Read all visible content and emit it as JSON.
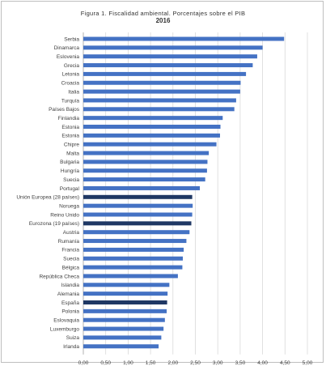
{
  "chart_data": {
    "type": "bar",
    "orientation": "horizontal",
    "title": "Figura 1. Fiscalidad ambiental. Porcentajes sobre el PIB",
    "subtitle": "2016",
    "categories": [
      "Serbia",
      "Dinamarca",
      "Eslovenia",
      "Grecia",
      "Letonia",
      "Croacia",
      "Italia",
      "Turquía",
      "Países Bajos",
      "Finlandia",
      "Estonia",
      "Estonia",
      "Chipre",
      "Malta",
      "Bulgaria",
      "Hungría",
      "Suecia",
      "Portugal",
      "Unión Europea (28 países)",
      "Noruega",
      "Reino Unido",
      "Eurozona (19 países)",
      "Austria",
      "Rumanía",
      "Francia",
      "Suecia",
      "Bélgica",
      "República Checa",
      "Islandia",
      "Alemania",
      "España",
      "Polonia",
      "Eslovaquia",
      "Luxemburgo",
      "Suiza",
      "Irlanda"
    ],
    "values": [
      4.48,
      4.0,
      3.88,
      3.78,
      3.63,
      3.51,
      3.5,
      3.41,
      3.37,
      3.11,
      3.06,
      3.05,
      2.97,
      2.8,
      2.77,
      2.76,
      2.72,
      2.6,
      2.43,
      2.44,
      2.43,
      2.41,
      2.37,
      2.3,
      2.24,
      2.22,
      2.21,
      2.11,
      1.92,
      1.88,
      1.87,
      1.86,
      1.82,
      1.79,
      1.74,
      1.68
    ],
    "highlighted": [
      "Unión Europea (28 países)",
      "Eurozona (19 países)",
      "España"
    ],
    "x_ticks": [
      "0,00",
      "0,50",
      "1,00",
      "1,50",
      "2,00",
      "2,50",
      "3,00",
      "3,50",
      "4,00",
      "4,50",
      "5,00"
    ],
    "xlim": [
      0,
      5
    ],
    "grid": "vertical",
    "legend": "none",
    "colors": {
      "bar": "#4472c4",
      "highlight": "#1f3864",
      "grid": "#d9d9d9",
      "text": "#404040"
    }
  }
}
